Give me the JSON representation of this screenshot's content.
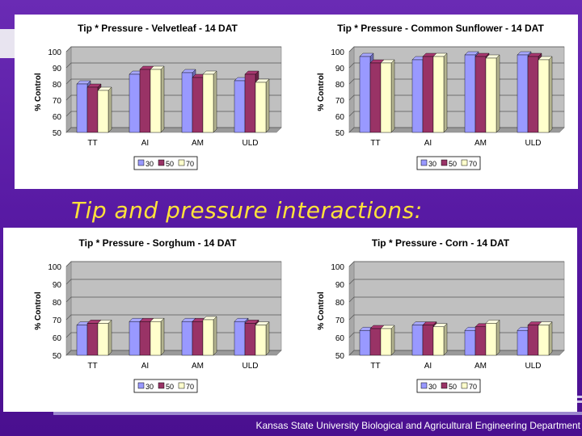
{
  "slide": {
    "heading": "Tip and pressure interactions:",
    "footer": "Kansas State University Biological and Agricultural Engineering Department"
  },
  "colors": {
    "background": "#5a1fa0",
    "heading": "#ffe23a",
    "series_30": "#9999ff",
    "series_50": "#993366",
    "series_70": "#ffffcc"
  },
  "chart_data": [
    {
      "type": "bar",
      "title": "Tip * Pressure - Velvetleaf - 14 DAT",
      "ylabel": "% Control",
      "ylim": [
        50,
        100
      ],
      "yticks": [
        50,
        60,
        70,
        80,
        90,
        100
      ],
      "categories": [
        "TT",
        "AI",
        "AM",
        "ULD"
      ],
      "series": [
        {
          "name": "30",
          "values": [
            80,
            86,
            87,
            82
          ]
        },
        {
          "name": "50",
          "values": [
            78,
            89,
            84,
            86
          ]
        },
        {
          "name": "70",
          "values": [
            76,
            89,
            86,
            81
          ]
        }
      ],
      "grid": true,
      "legend": "bottom"
    },
    {
      "type": "bar",
      "title": "Tip * Pressure - Common Sunflower - 14 DAT",
      "ylabel": "% Control",
      "ylim": [
        50,
        100
      ],
      "yticks": [
        50,
        60,
        70,
        80,
        90,
        100
      ],
      "categories": [
        "TT",
        "AI",
        "AM",
        "ULD"
      ],
      "series": [
        {
          "name": "30",
          "values": [
            97,
            95,
            98,
            98
          ]
        },
        {
          "name": "50",
          "values": [
            93,
            97,
            97,
            97
          ]
        },
        {
          "name": "70",
          "values": [
            93,
            97,
            96,
            95
          ]
        }
      ],
      "grid": true,
      "legend": "bottom"
    },
    {
      "type": "bar",
      "title": "Tip * Pressure - Sorghum - 14 DAT",
      "ylabel": "% Control",
      "ylim": [
        50,
        100
      ],
      "yticks": [
        50,
        60,
        70,
        80,
        90,
        100
      ],
      "categories": [
        "TT",
        "AI",
        "AM",
        "ULD"
      ],
      "series": [
        {
          "name": "30",
          "values": [
            67,
            69,
            69,
            69
          ]
        },
        {
          "name": "50",
          "values": [
            68,
            69,
            69,
            68
          ]
        },
        {
          "name": "70",
          "values": [
            68,
            69,
            70,
            67
          ]
        }
      ],
      "grid": true,
      "legend": "bottom"
    },
    {
      "type": "bar",
      "title": "Tip * Pressure - Corn - 14 DAT",
      "ylabel": "% Control",
      "ylim": [
        50,
        100
      ],
      "yticks": [
        50,
        60,
        70,
        80,
        90,
        100
      ],
      "categories": [
        "TT",
        "AI",
        "AM",
        "ULD"
      ],
      "series": [
        {
          "name": "30",
          "values": [
            64,
            67,
            64,
            64
          ]
        },
        {
          "name": "50",
          "values": [
            65,
            67,
            66,
            67
          ]
        },
        {
          "name": "70",
          "values": [
            65,
            66,
            68,
            67
          ]
        }
      ],
      "grid": true,
      "legend": "bottom"
    }
  ]
}
